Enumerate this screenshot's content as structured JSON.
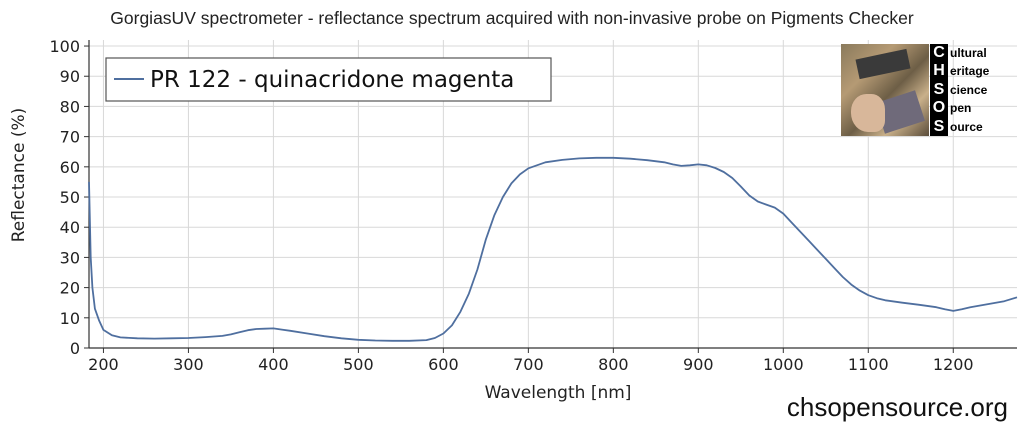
{
  "header": {
    "title": "GorgiasUV spectrometer - reflectance spectrum acquired with non-invasive probe on Pigments Checker"
  },
  "footer": {
    "url": "chsopensource.org"
  },
  "logo": {
    "letters": [
      "C",
      "H",
      "S",
      "O",
      "S"
    ],
    "words": [
      "ultural",
      "eritage",
      "cience",
      "pen",
      "ource"
    ]
  },
  "colors": {
    "series": "#4f6f9f",
    "grid": "#d8d8d8",
    "axis": "#333333"
  },
  "chart_data": {
    "type": "line",
    "title": "GorgiasUV spectrometer - reflectance spectrum acquired with non-invasive probe on Pigments Checker",
    "xlabel": "Wavelength [nm]",
    "ylabel": "Reflectance (%)",
    "xlim": [
      183,
      1275
    ],
    "ylim": [
      0,
      102
    ],
    "xticks": [
      200,
      300,
      400,
      500,
      600,
      700,
      800,
      900,
      1000,
      1100,
      1200
    ],
    "yticks": [
      0,
      10,
      20,
      30,
      40,
      50,
      60,
      70,
      80,
      90,
      100
    ],
    "grid": true,
    "legend_position": "top-left",
    "series": [
      {
        "name": "PR 122 - quinacridone magenta",
        "x": [
          183,
          185,
          187,
          190,
          195,
          200,
          210,
          220,
          240,
          260,
          280,
          300,
          320,
          340,
          350,
          360,
          370,
          380,
          390,
          400,
          410,
          420,
          440,
          460,
          480,
          500,
          520,
          540,
          560,
          580,
          590,
          600,
          610,
          620,
          630,
          640,
          650,
          660,
          670,
          680,
          690,
          700,
          720,
          740,
          760,
          780,
          800,
          820,
          840,
          860,
          870,
          880,
          890,
          900,
          910,
          920,
          930,
          940,
          950,
          960,
          970,
          980,
          990,
          1000,
          1010,
          1020,
          1030,
          1040,
          1050,
          1060,
          1070,
          1080,
          1090,
          1100,
          1110,
          1120,
          1140,
          1160,
          1180,
          1190,
          1200,
          1210,
          1220,
          1240,
          1260,
          1275
        ],
        "y": [
          55,
          30,
          20,
          13,
          9,
          6,
          4.2,
          3.5,
          3.2,
          3.1,
          3.2,
          3.3,
          3.6,
          4,
          4.5,
          5.2,
          5.9,
          6.3,
          6.4,
          6.5,
          6.1,
          5.7,
          4.8,
          3.9,
          3.2,
          2.7,
          2.5,
          2.4,
          2.4,
          2.6,
          3.3,
          4.8,
          7.5,
          12,
          18,
          26,
          36,
          44,
          50,
          54.5,
          57.5,
          59.5,
          61.5,
          62.3,
          62.8,
          63,
          63,
          62.7,
          62.2,
          61.5,
          60.8,
          60.3,
          60.5,
          60.8,
          60.5,
          59.6,
          58.3,
          56.3,
          53.5,
          50.5,
          48.5,
          47.5,
          46.5,
          44.5,
          41.5,
          38.5,
          35.5,
          32.5,
          29.5,
          26.5,
          23.5,
          21,
          19,
          17.5,
          16.5,
          15.8,
          15,
          14.3,
          13.5,
          12.8,
          12.3,
          12.8,
          13.5,
          14.5,
          15.5,
          16.8
        ]
      }
    ]
  }
}
